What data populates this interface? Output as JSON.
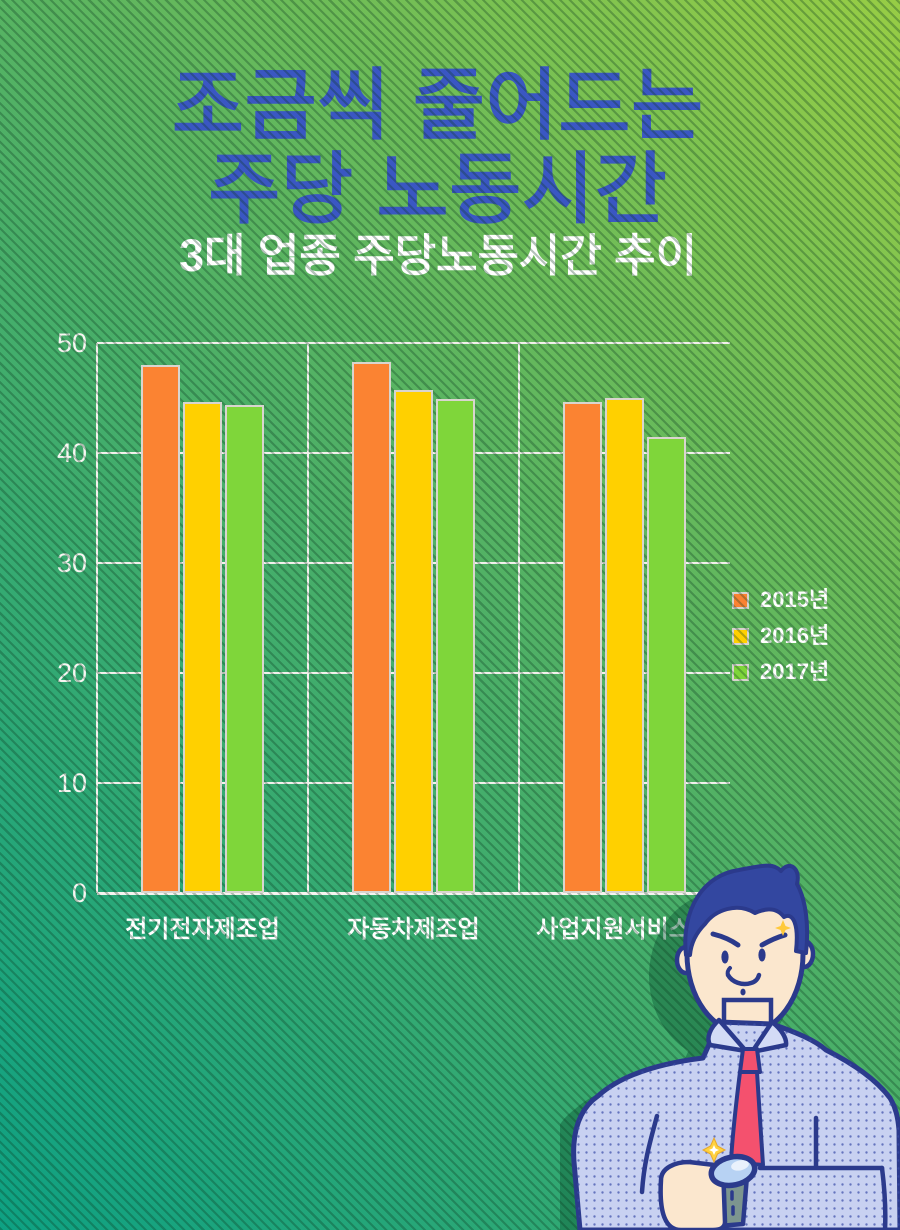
{
  "header": {
    "title_line1": "조금씩 줄어드는",
    "title_line2": "주당 노동시간",
    "subtitle": "3대 업종 주당노동시간 추이"
  },
  "chart_data": {
    "type": "bar",
    "title": "3대 업종 주당노동시간 추이",
    "categories": [
      "전기전자제조업",
      "자동차제조업",
      "사업지원서비스업"
    ],
    "series": [
      {
        "name": "2015년",
        "color": "#fb8332",
        "values": [
          48.0,
          48.3,
          44.6
        ]
      },
      {
        "name": "2016년",
        "color": "#ffd000",
        "values": [
          44.6,
          45.7,
          45.0
        ]
      },
      {
        "name": "2017년",
        "color": "#7fd63a",
        "values": [
          44.4,
          44.9,
          41.5
        ]
      }
    ],
    "ylim": [
      0,
      50
    ],
    "yticks": [
      0,
      10,
      20,
      30,
      40,
      50
    ],
    "grid": true,
    "legend_position": "right",
    "xlabel": "",
    "ylabel": ""
  },
  "colors": {
    "title_blue": "#3a57c3",
    "subtitle_white": "#ffffff",
    "grid_white": "#f2f0ec",
    "bar_border": "#d9d5cf",
    "background_teal": "#0ea183",
    "background_green": "#4fb066",
    "background_lime": "#97cd45"
  }
}
